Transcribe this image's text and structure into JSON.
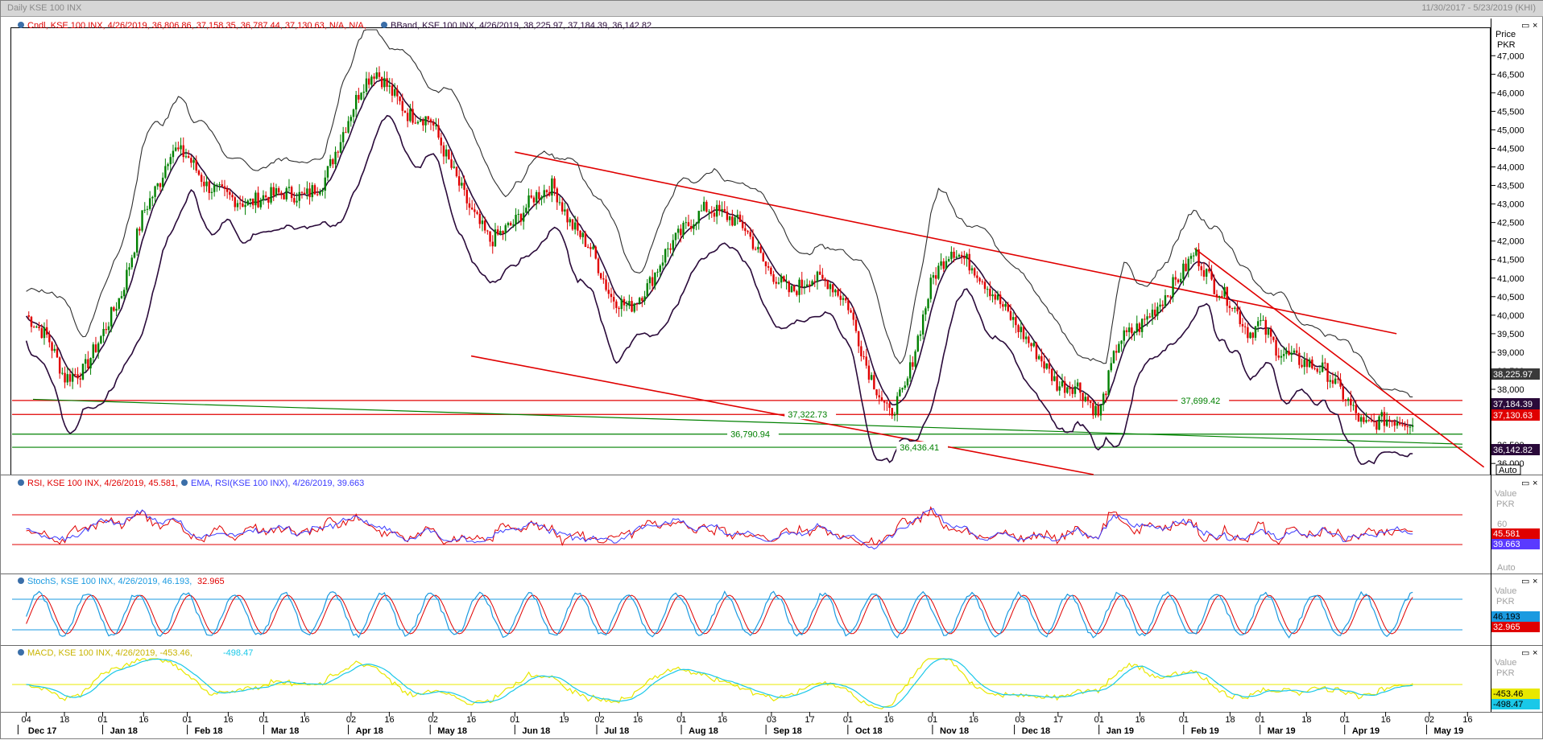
{
  "window": {
    "title": "Daily KSE 100 INX",
    "date_range": "11/30/2017 - 5/23/2019 (KHI)"
  },
  "colors": {
    "candle_up": "#008000",
    "candle_down": "#e00000",
    "bband_outer": "#2e2e2e",
    "bband_mid": "#2a0a3a",
    "rsi": "#e00000",
    "rsi_ema": "#3a3aff",
    "stoch_k": "#1a9ae0",
    "stoch_d": "#e00000",
    "macd": "#e8e800",
    "macd_signal": "#1ac8e8",
    "hline_red": "#e00000",
    "hline_green": "#008000"
  },
  "panels": {
    "price": {
      "legend_candle": "Cndl, KSE 100 INX, 4/26/2019, 36,806.86, 37,158.35, 36,787.44, 37,130.63, N/A, N/A,",
      "legend_bband": "BBand, KSE 100 INX, 4/26/2019, 38,225.97, 37,184.39, 36,142.82",
      "axis_title_1": "Price",
      "axis_title_2": "PKR",
      "axis_labels": [
        "47,000",
        "46,500",
        "46,000",
        "45,500",
        "45,000",
        "44,500",
        "44,000",
        "43,500",
        "43,000",
        "42,500",
        "42,000",
        "41,500",
        "41,000",
        "40,500",
        "40,000",
        "39,500",
        "39,000",
        "38,500",
        "38,000",
        "36,500",
        "36,000"
      ],
      "annotations": [
        "37,322.73",
        "37,699.42",
        "36,790.94",
        "36,436.41"
      ],
      "last_values": {
        "bb_upper": "38,225.97",
        "bb_mid": "37,184.39",
        "close": "37,130.63",
        "bb_lower": "36,142.82"
      },
      "auto": "Auto"
    },
    "rsi": {
      "legend_rsi": "RSI, KSE 100 INX, 4/26/2019, 45.581,",
      "legend_ema": "EMA, RSI(KSE 100 INX), 4/26/2019, 39.663",
      "axis_title_1": "Value",
      "axis_title_2": "PKR",
      "tick": "60",
      "last_rsi": "45.581",
      "last_ema": "39.663",
      "auto": "Auto"
    },
    "stoch": {
      "legend": "StochS, KSE 100 INX, 4/26/2019, 46.193,",
      "legend_d": "32.965",
      "axis_title_1": "Value",
      "axis_title_2": "PKR",
      "last_k": "46.193",
      "last_d": "32.965"
    },
    "macd": {
      "legend": "MACD, KSE 100 INX, 4/26/2019, -453.46,",
      "legend_signal": "-498.47",
      "axis_title_1": "Value",
      "axis_title_2": "PKR",
      "last_macd": "-453.46",
      "last_signal": "-498.47"
    }
  },
  "x_axis": {
    "days": [
      "04",
      "18",
      "01",
      "16",
      "01",
      "16",
      "01",
      "16",
      "02",
      "16",
      "02",
      "16",
      "01",
      "19",
      "02",
      "16",
      "01",
      "16",
      "03",
      "17",
      "01",
      "16",
      "01",
      "16",
      "03",
      "17",
      "01",
      "16",
      "01",
      "18",
      "01",
      "18",
      "01",
      "16",
      "02",
      "16"
    ],
    "months": [
      "Dec 17",
      "Jan 18",
      "Feb 18",
      "Mar 18",
      "Apr 18",
      "May 18",
      "Jun 18",
      "Jul 18",
      "Aug 18",
      "Sep 18",
      "Oct 18",
      "Nov 18",
      "Dec 18",
      "Jan 19",
      "Feb 19",
      "Mar 19",
      "Apr 19",
      "May 19"
    ]
  },
  "chart_data": {
    "type": "candlestick",
    "title": "Daily KSE 100 INX",
    "currency": "PKR",
    "date_range": [
      "11/30/2017",
      "5/23/2019"
    ],
    "last_bar": {
      "date": "4/26/2019",
      "open": 36806.86,
      "high": 37158.35,
      "low": 36787.44,
      "close": 37130.63
    },
    "close_path": [
      [
        "2017-12-04",
        40000
      ],
      [
        "2017-12-12",
        39400
      ],
      [
        "2017-12-18",
        38300
      ],
      [
        "2017-12-25",
        38500
      ],
      [
        "2018-01-01",
        39500
      ],
      [
        "2018-01-08",
        40600
      ],
      [
        "2018-01-16",
        42800
      ],
      [
        "2018-01-22",
        43600
      ],
      [
        "2018-01-26",
        44500
      ],
      [
        "2018-02-01",
        44300
      ],
      [
        "2018-02-08",
        43500
      ],
      [
        "2018-02-16",
        43200
      ],
      [
        "2018-02-23",
        43000
      ],
      [
        "2018-03-01",
        43200
      ],
      [
        "2018-03-09",
        43300
      ],
      [
        "2018-03-16",
        43200
      ],
      [
        "2018-03-23",
        43600
      ],
      [
        "2018-04-01",
        45300
      ],
      [
        "2018-04-06",
        46200
      ],
      [
        "2018-04-11",
        46600
      ],
      [
        "2018-04-16",
        46100
      ],
      [
        "2018-04-23",
        45400
      ],
      [
        "2018-05-01",
        45300
      ],
      [
        "2018-05-08",
        44100
      ],
      [
        "2018-05-16",
        42800
      ],
      [
        "2018-05-23",
        42000
      ],
      [
        "2018-06-01",
        42500
      ],
      [
        "2018-06-08",
        43200
      ],
      [
        "2018-06-15",
        43500
      ],
      [
        "2018-06-21",
        42500
      ],
      [
        "2018-06-29",
        41800
      ],
      [
        "2018-07-06",
        40500
      ],
      [
        "2018-07-13",
        40200
      ],
      [
        "2018-07-20",
        40800
      ],
      [
        "2018-07-27",
        41800
      ],
      [
        "2018-08-03",
        42400
      ],
      [
        "2018-08-10",
        42900
      ],
      [
        "2018-08-17",
        42700
      ],
      [
        "2018-08-24",
        42400
      ],
      [
        "2018-09-01",
        41300
      ],
      [
        "2018-09-10",
        40600
      ],
      [
        "2018-09-17",
        41000
      ],
      [
        "2018-09-24",
        40900
      ],
      [
        "2018-10-01",
        40300
      ],
      [
        "2018-10-08",
        38600
      ],
      [
        "2018-10-16",
        37300
      ],
      [
        "2018-10-22",
        38000
      ],
      [
        "2018-11-01",
        41000
      ],
      [
        "2018-11-08",
        41800
      ],
      [
        "2018-11-16",
        41300
      ],
      [
        "2018-11-23",
        40600
      ],
      [
        "2018-12-01",
        39800
      ],
      [
        "2018-12-10",
        38900
      ],
      [
        "2018-12-17",
        38100
      ],
      [
        "2018-12-24",
        38100
      ],
      [
        "2019-01-01",
        37300
      ],
      [
        "2019-01-08",
        39300
      ],
      [
        "2019-01-16",
        39700
      ],
      [
        "2019-01-23",
        40300
      ],
      [
        "2019-02-01",
        41200
      ],
      [
        "2019-02-05",
        41700
      ],
      [
        "2019-02-12",
        40800
      ],
      [
        "2019-02-18",
        40400
      ],
      [
        "2019-02-25",
        39500
      ],
      [
        "2019-03-01",
        39800
      ],
      [
        "2019-03-08",
        39000
      ],
      [
        "2019-03-18",
        38700
      ],
      [
        "2019-03-25",
        38500
      ],
      [
        "2019-04-01",
        37800
      ],
      [
        "2019-04-08",
        37000
      ],
      [
        "2019-04-16",
        37200
      ],
      [
        "2019-04-26",
        37130.63
      ]
    ],
    "bollinger": {
      "period_end": "4/26/2019",
      "upper": 38225.97,
      "middle": 37184.39,
      "lower": 36142.82
    },
    "horizontal_levels": [
      37322.73,
      37699.42,
      36790.94,
      36436.41
    ],
    "indicators": {
      "rsi": 45.581,
      "rsi_ema": 39.663,
      "stoch_k": 46.193,
      "stoch_d": 32.965,
      "macd": -453.46,
      "macd_signal": -498.47
    },
    "y_range_price": [
      35700,
      47700
    ]
  }
}
